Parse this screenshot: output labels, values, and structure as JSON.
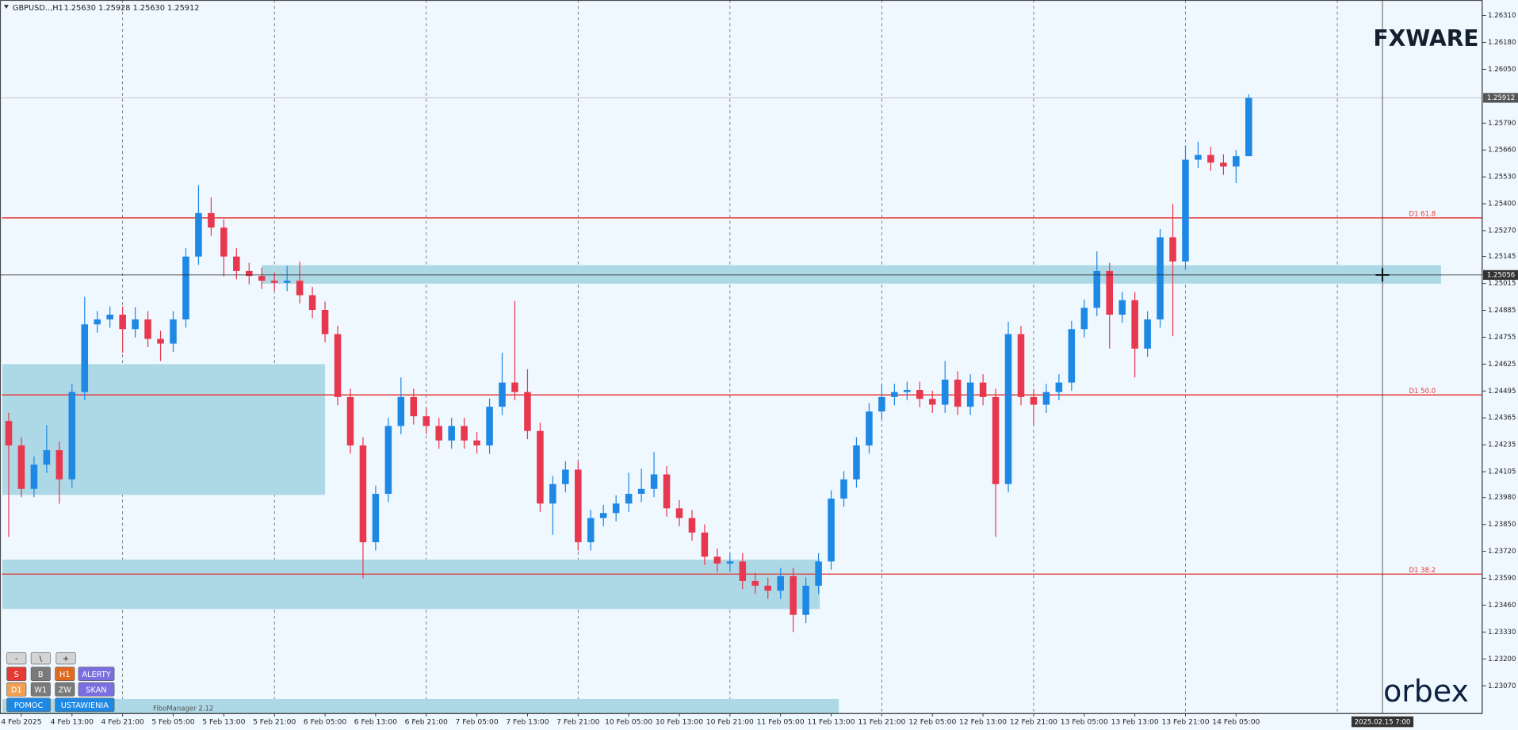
{
  "header": {
    "title": "GBPUSD..,H1",
    "ohlc": "1.25630 1.25928 1.25630 1.25912"
  },
  "chart_data": {
    "type": "candlestick",
    "categories": [
      null,
      "4 Feb 2025",
      null,
      null,
      null,
      "4 Feb 13:00",
      null,
      null,
      null,
      "4 Feb 21:00",
      null,
      null,
      null,
      "5 Feb 05:00",
      null,
      null,
      null,
      "5 Feb 13:00",
      null,
      null,
      null,
      "5 Feb 21:00",
      null,
      null,
      null,
      "6 Feb 05:00",
      null,
      null,
      null,
      "6 Feb 13:00",
      null,
      null,
      null,
      "6 Feb 21:00",
      null,
      null,
      null,
      "7 Feb 05:00",
      null,
      null,
      null,
      "7 Feb 13:00",
      null,
      null,
      null,
      "7 Feb 21:00",
      null,
      null,
      null,
      "10 Feb 05:00",
      null,
      null,
      null,
      "10 Feb 13:00",
      null,
      null,
      null,
      "10 Feb 21:00",
      null,
      null,
      null,
      "11 Feb 05:00",
      null,
      null,
      null,
      "11 Feb 13:00",
      null,
      null,
      null,
      "11 Feb 21:00",
      null,
      null,
      null,
      "12 Feb 05:00",
      null,
      null,
      null,
      "12 Feb 13:00",
      null,
      null,
      null,
      "12 Feb 21:00",
      null,
      null,
      null,
      "13 Feb 05:00",
      null,
      null,
      null,
      "13 Feb 13:00",
      null,
      null,
      null,
      "13 Feb 21:00",
      null,
      null,
      null,
      "14 Feb 05:00",
      null
    ],
    "open": [
      1.2435,
      1.24232,
      1.24022,
      1.24139,
      1.24209,
      1.24068,
      1.2449,
      1.24817,
      1.24841,
      1.24864,
      1.24794,
      1.24841,
      1.24747,
      1.24724,
      1.24841,
      1.25145,
      1.25355,
      1.25285,
      1.25145,
      1.25075,
      1.25051,
      1.25028,
      1.25018,
      1.25028,
      1.24958,
      1.24887,
      1.2477,
      1.24466,
      1.24232,
      1.23764,
      1.23998,
      1.24326,
      1.24466,
      1.24373,
      1.24326,
      1.24256,
      1.24326,
      1.24256,
      1.24232,
      1.24419,
      1.24536,
      1.2449,
      1.24302,
      1.23951,
      1.24045,
      1.24115,
      1.23764,
      1.23881,
      1.23905,
      1.23951,
      1.23998,
      1.24022,
      1.24092,
      1.23928,
      1.23881,
      1.23811,
      1.23694,
      1.23661,
      1.23671,
      1.23577,
      1.23554,
      1.2353,
      1.236,
      1.23413,
      1.23554,
      1.23671,
      1.23975,
      1.24068,
      1.24232,
      1.24396,
      1.24466,
      1.2449,
      1.245,
      1.24457,
      1.24429,
      1.2455,
      1.24419,
      1.24536,
      1.24466,
      1.24045,
      1.2477,
      1.24466,
      1.24429,
      1.2449,
      1.24536,
      1.24794,
      1.24897,
      1.25075,
      1.24864,
      1.24934,
      1.247,
      1.24841,
      1.25238,
      1.25121,
      1.25613,
      1.25636,
      1.25599,
      1.2558,
      1.2563
    ],
    "high": [
      1.2439,
      1.24272,
      1.24179,
      1.2433,
      1.24249,
      1.2453,
      1.2495,
      1.24881,
      1.24904,
      1.24904,
      1.249,
      1.24881,
      1.24787,
      1.24881,
      1.25185,
      1.2549,
      1.2543,
      1.25325,
      1.25185,
      1.25115,
      1.25091,
      1.25068,
      1.251,
      1.2512,
      1.24998,
      1.24927,
      1.2481,
      1.24506,
      1.24272,
      1.24038,
      1.24366,
      1.2456,
      1.24506,
      1.24413,
      1.24366,
      1.24366,
      1.24366,
      1.24296,
      1.24459,
      1.2468,
      1.2493,
      1.246,
      1.24342,
      1.24085,
      1.24155,
      1.24155,
      1.23921,
      1.23945,
      1.23991,
      1.241,
      1.2412,
      1.242,
      1.24132,
      1.23968,
      1.23921,
      1.23851,
      1.23734,
      1.23711,
      1.23711,
      1.23617,
      1.23594,
      1.2364,
      1.2364,
      1.23594,
      1.23711,
      1.24015,
      1.24108,
      1.24272,
      1.24436,
      1.2453,
      1.2453,
      1.2454,
      1.2454,
      1.24497,
      1.2464,
      1.2459,
      1.24576,
      1.24576,
      1.24506,
      1.2483,
      1.2481,
      1.24506,
      1.2453,
      1.24576,
      1.24834,
      1.24937,
      1.2517,
      1.25115,
      1.24974,
      1.24974,
      1.24881,
      1.25278,
      1.254,
      1.2568,
      1.257,
      1.25676,
      1.25639,
      1.2566,
      1.25928
    ],
    "low": [
      1.2379,
      1.23982,
      1.23982,
      1.24099,
      1.2395,
      1.24028,
      1.2445,
      1.24777,
      1.24801,
      1.2468,
      1.24754,
      1.24707,
      1.2464,
      1.24684,
      1.24801,
      1.25105,
      1.25245,
      1.2505,
      1.25035,
      1.25011,
      1.24988,
      1.24978,
      1.24978,
      1.24918,
      1.24847,
      1.2473,
      1.24426,
      1.24192,
      1.2359,
      1.23724,
      1.23958,
      1.24286,
      1.24333,
      1.24286,
      1.24216,
      1.24216,
      1.24216,
      1.24192,
      1.24192,
      1.24379,
      1.2445,
      1.24262,
      1.23911,
      1.238,
      1.24005,
      1.23724,
      1.23724,
      1.23841,
      1.23865,
      1.23911,
      1.23958,
      1.23982,
      1.23888,
      1.23841,
      1.23771,
      1.23654,
      1.23621,
      1.23621,
      1.23537,
      1.23514,
      1.2349,
      1.2349,
      1.2333,
      1.23373,
      1.23514,
      1.23631,
      1.23935,
      1.24028,
      1.24192,
      1.24356,
      1.24426,
      1.2445,
      1.24417,
      1.24389,
      1.24389,
      1.24379,
      1.24379,
      1.24426,
      1.2379,
      1.24005,
      1.24426,
      1.2433,
      1.24389,
      1.2445,
      1.24496,
      1.24754,
      1.24857,
      1.247,
      1.24824,
      1.2456,
      1.2466,
      1.24801,
      1.2476,
      1.25081,
      1.25573,
      1.25559,
      1.2554,
      1.255,
      1.2563
    ],
    "close": [
      1.24232,
      1.24022,
      1.24139,
      1.24209,
      1.24068,
      1.2449,
      1.24817,
      1.24841,
      1.24864,
      1.24794,
      1.24841,
      1.24747,
      1.24724,
      1.24841,
      1.25145,
      1.25355,
      1.25285,
      1.25145,
      1.25075,
      1.25051,
      1.25028,
      1.25018,
      1.25028,
      1.24958,
      1.24887,
      1.2477,
      1.24466,
      1.24232,
      1.23764,
      1.23998,
      1.24326,
      1.24466,
      1.24373,
      1.24326,
      1.24256,
      1.24326,
      1.24256,
      1.24232,
      1.24419,
      1.24536,
      1.2449,
      1.24302,
      1.23951,
      1.24045,
      1.24115,
      1.23764,
      1.23881,
      1.23905,
      1.23951,
      1.23998,
      1.24022,
      1.24092,
      1.23928,
      1.23881,
      1.23811,
      1.23694,
      1.23661,
      1.23671,
      1.23577,
      1.23554,
      1.2353,
      1.236,
      1.23413,
      1.23554,
      1.23671,
      1.23975,
      1.24068,
      1.24232,
      1.24396,
      1.24466,
      1.2449,
      1.245,
      1.24457,
      1.24429,
      1.2455,
      1.24419,
      1.24536,
      1.24466,
      1.24045,
      1.2477,
      1.24466,
      1.24429,
      1.2449,
      1.24536,
      1.24794,
      1.24897,
      1.25075,
      1.24864,
      1.24934,
      1.247,
      1.24841,
      1.25238,
      1.25121,
      1.25613,
      1.25636,
      1.25599,
      1.2558,
      1.2563,
      1.25912
    ],
    "up_color": "#1e88e5",
    "down_color": "#e8384f",
    "ylim": [
      1.22936,
      1.26385
    ],
    "yticks": [
      {
        "value": 1.2631,
        "label": "1.26310"
      },
      {
        "value": 1.2618,
        "label": "1.26180"
      },
      {
        "value": 1.2605,
        "label": "1.26050"
      },
      {
        "value": 1.2579,
        "label": "1.25790"
      },
      {
        "value": 1.2566,
        "label": "1.25660"
      },
      {
        "value": 1.2553,
        "label": "1.25530"
      },
      {
        "value": 1.254,
        "label": "1.25400"
      },
      {
        "value": 1.2527,
        "label": "1.25270"
      },
      1.25145,
      1.25015,
      1.24885,
      1.24755,
      1.24625,
      1.24495,
      1.24365,
      1.24235,
      1.24105,
      {
        "value": 1.2398,
        "label": "1.23980"
      },
      {
        "value": 1.2385,
        "label": "1.23850"
      },
      {
        "value": 1.2372,
        "label": "1.23720"
      },
      {
        "value": 1.2359,
        "label": "1.23590"
      },
      {
        "value": 1.2346,
        "label": "1.23460"
      },
      {
        "value": 1.2333,
        "label": "1.23330"
      },
      {
        "value": 1.232,
        "label": "1.23200"
      },
      {
        "value": 1.2307,
        "label": "1.23070"
      }
    ],
    "grid": true,
    "last_price": 1.25912,
    "crosshair": {
      "price": 1.25056,
      "time": "2025.02.15 7:00"
    },
    "levels": [
      {
        "label": "D1 61.8",
        "value": 1.25332
      },
      {
        "label": "D1 50.0",
        "value": 1.24476
      },
      {
        "label": "D1 38.2",
        "value": 1.2361
      }
    ],
    "level_color": "#e53935",
    "zones": [
      {
        "top": 1.25103,
        "bottom": 1.25014,
        "from": 20,
        "to": 113.2
      },
      {
        "top": 1.24625,
        "bottom": 1.23993,
        "from": -0.5,
        "to": 25
      },
      {
        "top": 1.2368,
        "bottom": 1.23441,
        "from": -0.5,
        "to": 64.1
      },
      {
        "top": 1.23006,
        "bottom": 1.22936,
        "from": -0.5,
        "to": 65.6
      }
    ],
    "zone_color": "#add8e6"
  },
  "logos": {
    "top": "FXWARE",
    "bottom": "orbex"
  },
  "panel": {
    "rows": [
      [
        "-",
        "\\",
        "+"
      ],
      [
        "S",
        "B",
        "H1",
        "ALERTY"
      ],
      [
        "D1",
        "W1",
        "ZW",
        "SKAN"
      ],
      [
        "POMOC",
        "USTAWIENIA"
      ]
    ],
    "indicator": "FiboManager 2.12"
  }
}
